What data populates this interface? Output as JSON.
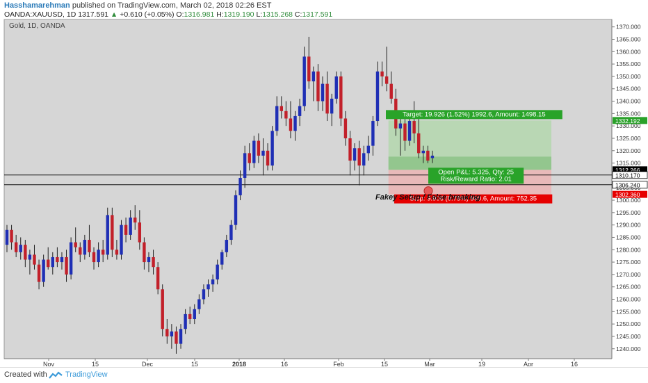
{
  "header": {
    "author": "Hasshamarehman",
    "published": "published on TradingView.com, March 02, 2018 02:26 EST",
    "symbol": "OANDA:XAUUSD, 1D",
    "last": "1317.591",
    "change": "+0.610 (+0.05%)",
    "open_label": "O:",
    "open": "1316.981",
    "high_label": "H:",
    "high": "1319.190",
    "low_label": "L:",
    "low": "1315.268",
    "close_label": "C:",
    "close": "1317.591"
  },
  "footer": {
    "created_with": "Created with",
    "brand": "TradingView"
  },
  "colors": {
    "up": "#1f2fb5",
    "down": "#c2202a",
    "background": "#d6d6d6",
    "target_zone": "#b6d7b0",
    "stop_zone": "#e9b7b7",
    "target_label": "#29a329",
    "stop_label": "#e60000",
    "price_marker": "#000000"
  },
  "chart_data": {
    "type": "candlestick",
    "title": "Gold, 1D, OANDA",
    "x_tick_labels": [
      "Nov",
      "15",
      "Dec",
      "15",
      "2018",
      "16",
      "Feb",
      "15",
      "Mar",
      "19",
      "Apr",
      "16"
    ],
    "y_ticks": [
      1240,
      1245,
      1250,
      1255,
      1260,
      1265,
      1270,
      1275,
      1280,
      1285,
      1290,
      1295,
      1300,
      1305,
      1310,
      1315,
      1320,
      1325,
      1330,
      1335,
      1340,
      1345,
      1350,
      1355,
      1360,
      1365,
      1370
    ],
    "ylim": [
      1236,
      1373
    ],
    "grid": false,
    "candles": [
      {
        "x": 0,
        "o": 1282,
        "h": 1290,
        "l": 1279,
        "c": 1288
      },
      {
        "x": 1,
        "o": 1288,
        "h": 1290,
        "l": 1280,
        "c": 1283
      },
      {
        "x": 2,
        "o": 1283,
        "h": 1286,
        "l": 1277,
        "c": 1279
      },
      {
        "x": 3,
        "o": 1279,
        "h": 1285,
        "l": 1276,
        "c": 1282
      },
      {
        "x": 4,
        "o": 1282,
        "h": 1284,
        "l": 1273,
        "c": 1276
      },
      {
        "x": 5,
        "o": 1276,
        "h": 1280,
        "l": 1270,
        "c": 1278
      },
      {
        "x": 6,
        "o": 1278,
        "h": 1282,
        "l": 1272,
        "c": 1274
      },
      {
        "x": 7,
        "o": 1274,
        "h": 1276,
        "l": 1264,
        "c": 1267
      },
      {
        "x": 8,
        "o": 1267,
        "h": 1278,
        "l": 1265,
        "c": 1276
      },
      {
        "x": 9,
        "o": 1276,
        "h": 1281,
        "l": 1272,
        "c": 1273
      },
      {
        "x": 10,
        "o": 1273,
        "h": 1279,
        "l": 1270,
        "c": 1277
      },
      {
        "x": 11,
        "o": 1277,
        "h": 1281,
        "l": 1273,
        "c": 1275
      },
      {
        "x": 12,
        "o": 1275,
        "h": 1279,
        "l": 1272,
        "c": 1277
      },
      {
        "x": 13,
        "o": 1277,
        "h": 1280,
        "l": 1267,
        "c": 1270
      },
      {
        "x": 14,
        "o": 1270,
        "h": 1285,
        "l": 1268,
        "c": 1283
      },
      {
        "x": 15,
        "o": 1283,
        "h": 1289,
        "l": 1279,
        "c": 1281
      },
      {
        "x": 16,
        "o": 1281,
        "h": 1283,
        "l": 1275,
        "c": 1278
      },
      {
        "x": 17,
        "o": 1278,
        "h": 1286,
        "l": 1276,
        "c": 1284
      },
      {
        "x": 18,
        "o": 1284,
        "h": 1290,
        "l": 1277,
        "c": 1279
      },
      {
        "x": 19,
        "o": 1279,
        "h": 1281,
        "l": 1272,
        "c": 1275
      },
      {
        "x": 20,
        "o": 1275,
        "h": 1283,
        "l": 1273,
        "c": 1280
      },
      {
        "x": 21,
        "o": 1280,
        "h": 1284,
        "l": 1275,
        "c": 1278
      },
      {
        "x": 22,
        "o": 1278,
        "h": 1297,
        "l": 1276,
        "c": 1294
      },
      {
        "x": 23,
        "o": 1294,
        "h": 1297,
        "l": 1277,
        "c": 1280
      },
      {
        "x": 24,
        "o": 1280,
        "h": 1284,
        "l": 1276,
        "c": 1278
      },
      {
        "x": 25,
        "o": 1278,
        "h": 1292,
        "l": 1276,
        "c": 1290
      },
      {
        "x": 26,
        "o": 1290,
        "h": 1293,
        "l": 1283,
        "c": 1286
      },
      {
        "x": 27,
        "o": 1286,
        "h": 1296,
        "l": 1284,
        "c": 1293
      },
      {
        "x": 28,
        "o": 1293,
        "h": 1298,
        "l": 1288,
        "c": 1291
      },
      {
        "x": 29,
        "o": 1291,
        "h": 1296,
        "l": 1280,
        "c": 1283
      },
      {
        "x": 30,
        "o": 1283,
        "h": 1285,
        "l": 1272,
        "c": 1275
      },
      {
        "x": 31,
        "o": 1275,
        "h": 1279,
        "l": 1271,
        "c": 1277
      },
      {
        "x": 32,
        "o": 1277,
        "h": 1280,
        "l": 1270,
        "c": 1273
      },
      {
        "x": 33,
        "o": 1273,
        "h": 1275,
        "l": 1262,
        "c": 1264
      },
      {
        "x": 34,
        "o": 1264,
        "h": 1266,
        "l": 1245,
        "c": 1248
      },
      {
        "x": 35,
        "o": 1248,
        "h": 1252,
        "l": 1242,
        "c": 1245
      },
      {
        "x": 36,
        "o": 1245,
        "h": 1250,
        "l": 1240,
        "c": 1247
      },
      {
        "x": 37,
        "o": 1247,
        "h": 1249,
        "l": 1238,
        "c": 1242
      },
      {
        "x": 38,
        "o": 1242,
        "h": 1250,
        "l": 1240,
        "c": 1248
      },
      {
        "x": 39,
        "o": 1248,
        "h": 1256,
        "l": 1246,
        "c": 1254
      },
      {
        "x": 40,
        "o": 1254,
        "h": 1257,
        "l": 1250,
        "c": 1252
      },
      {
        "x": 41,
        "o": 1252,
        "h": 1258,
        "l": 1250,
        "c": 1256
      },
      {
        "x": 42,
        "o": 1256,
        "h": 1262,
        "l": 1254,
        "c": 1260
      },
      {
        "x": 43,
        "o": 1260,
        "h": 1266,
        "l": 1258,
        "c": 1264
      },
      {
        "x": 44,
        "o": 1264,
        "h": 1268,
        "l": 1261,
        "c": 1266
      },
      {
        "x": 45,
        "o": 1266,
        "h": 1270,
        "l": 1263,
        "c": 1268
      },
      {
        "x": 46,
        "o": 1268,
        "h": 1276,
        "l": 1266,
        "c": 1274
      },
      {
        "x": 47,
        "o": 1274,
        "h": 1280,
        "l": 1272,
        "c": 1279
      },
      {
        "x": 48,
        "o": 1279,
        "h": 1286,
        "l": 1277,
        "c": 1284
      },
      {
        "x": 49,
        "o": 1284,
        "h": 1292,
        "l": 1282,
        "c": 1290
      },
      {
        "x": 50,
        "o": 1290,
        "h": 1304,
        "l": 1288,
        "c": 1302
      },
      {
        "x": 51,
        "o": 1302,
        "h": 1312,
        "l": 1300,
        "c": 1309
      },
      {
        "x": 52,
        "o": 1309,
        "h": 1322,
        "l": 1305,
        "c": 1319
      },
      {
        "x": 53,
        "o": 1319,
        "h": 1323,
        "l": 1312,
        "c": 1315
      },
      {
        "x": 54,
        "o": 1315,
        "h": 1326,
        "l": 1313,
        "c": 1324
      },
      {
        "x": 55,
        "o": 1324,
        "h": 1327,
        "l": 1315,
        "c": 1318
      },
      {
        "x": 56,
        "o": 1318,
        "h": 1325,
        "l": 1310,
        "c": 1320
      },
      {
        "x": 57,
        "o": 1320,
        "h": 1323,
        "l": 1312,
        "c": 1314
      },
      {
        "x": 58,
        "o": 1314,
        "h": 1330,
        "l": 1312,
        "c": 1328
      },
      {
        "x": 59,
        "o": 1328,
        "h": 1342,
        "l": 1326,
        "c": 1338
      },
      {
        "x": 60,
        "o": 1338,
        "h": 1342,
        "l": 1333,
        "c": 1336
      },
      {
        "x": 61,
        "o": 1336,
        "h": 1340,
        "l": 1330,
        "c": 1333
      },
      {
        "x": 62,
        "o": 1333,
        "h": 1340,
        "l": 1325,
        "c": 1328
      },
      {
        "x": 63,
        "o": 1328,
        "h": 1336,
        "l": 1324,
        "c": 1334
      },
      {
        "x": 64,
        "o": 1334,
        "h": 1341,
        "l": 1330,
        "c": 1338
      },
      {
        "x": 65,
        "o": 1338,
        "h": 1362,
        "l": 1336,
        "c": 1358
      },
      {
        "x": 66,
        "o": 1358,
        "h": 1366,
        "l": 1345,
        "c": 1348
      },
      {
        "x": 67,
        "o": 1348,
        "h": 1354,
        "l": 1340,
        "c": 1352
      },
      {
        "x": 68,
        "o": 1352,
        "h": 1355,
        "l": 1336,
        "c": 1340
      },
      {
        "x": 69,
        "o": 1340,
        "h": 1350,
        "l": 1336,
        "c": 1347
      },
      {
        "x": 70,
        "o": 1347,
        "h": 1352,
        "l": 1332,
        "c": 1335
      },
      {
        "x": 71,
        "o": 1335,
        "h": 1343,
        "l": 1330,
        "c": 1341
      },
      {
        "x": 72,
        "o": 1341,
        "h": 1352,
        "l": 1339,
        "c": 1350
      },
      {
        "x": 73,
        "o": 1350,
        "h": 1352,
        "l": 1330,
        "c": 1333
      },
      {
        "x": 74,
        "o": 1333,
        "h": 1336,
        "l": 1322,
        "c": 1325
      },
      {
        "x": 75,
        "o": 1325,
        "h": 1328,
        "l": 1310,
        "c": 1316
      },
      {
        "x": 76,
        "o": 1316,
        "h": 1323,
        "l": 1312,
        "c": 1321
      },
      {
        "x": 77,
        "o": 1321,
        "h": 1324,
        "l": 1306,
        "c": 1314
      },
      {
        "x": 78,
        "o": 1314,
        "h": 1322,
        "l": 1310,
        "c": 1319
      },
      {
        "x": 79,
        "o": 1319,
        "h": 1326,
        "l": 1316,
        "c": 1322
      },
      {
        "x": 80,
        "o": 1322,
        "h": 1334,
        "l": 1318,
        "c": 1332
      },
      {
        "x": 81,
        "o": 1332,
        "h": 1356,
        "l": 1330,
        "c": 1352
      },
      {
        "x": 82,
        "o": 1352,
        "h": 1356,
        "l": 1346,
        "c": 1350
      },
      {
        "x": 83,
        "o": 1350,
        "h": 1362,
        "l": 1344,
        "c": 1347
      },
      {
        "x": 84,
        "o": 1347,
        "h": 1352,
        "l": 1339,
        "c": 1341
      },
      {
        "x": 85,
        "o": 1341,
        "h": 1345,
        "l": 1326,
        "c": 1329
      },
      {
        "x": 86,
        "o": 1329,
        "h": 1334,
        "l": 1318,
        "c": 1331
      },
      {
        "x": 87,
        "o": 1331,
        "h": 1335,
        "l": 1320,
        "c": 1324
      },
      {
        "x": 88,
        "o": 1324,
        "h": 1334,
        "l": 1322,
        "c": 1332
      },
      {
        "x": 89,
        "o": 1332,
        "h": 1340,
        "l": 1323,
        "c": 1327
      },
      {
        "x": 90,
        "o": 1327,
        "h": 1333,
        "l": 1317,
        "c": 1319
      },
      {
        "x": 91,
        "o": 1319,
        "h": 1322,
        "l": 1315,
        "c": 1320
      },
      {
        "x": 92,
        "o": 1320,
        "h": 1322,
        "l": 1315,
        "c": 1316
      },
      {
        "x": 93,
        "o": 1317,
        "h": 1320,
        "l": 1315,
        "c": 1318
      }
    ],
    "horizontal_lines": [
      1310.17,
      1306.24
    ],
    "price_labels": [
      {
        "value": 1332.192,
        "text": "1332.192",
        "kind": "target"
      },
      {
        "value": 1312.266,
        "text": "1312.266",
        "kind": "current"
      },
      {
        "value": 1310.17,
        "text": "1310.170",
        "kind": "line"
      },
      {
        "value": 1306.24,
        "text": "1306.240",
        "kind": "line"
      },
      {
        "value": 1302.36,
        "text": "1302.360",
        "kind": "stop"
      }
    ],
    "position": {
      "entry": 1312.266,
      "target": 1332.192,
      "stop": 1302.36,
      "current": 1317.591,
      "target_label": "Target: 19.926 (1.52%) 1992.6, Amount: 1498.15",
      "pnl_label": "Open P&L: 5.325, Qty: 25",
      "rr_label": "Risk/Reward Ratio: 2.01",
      "stop_label": "Stop: 9.906 (0.75%) 990.6, Amount: 752.35"
    },
    "annotation": "Fakey Setup / False breaking"
  }
}
